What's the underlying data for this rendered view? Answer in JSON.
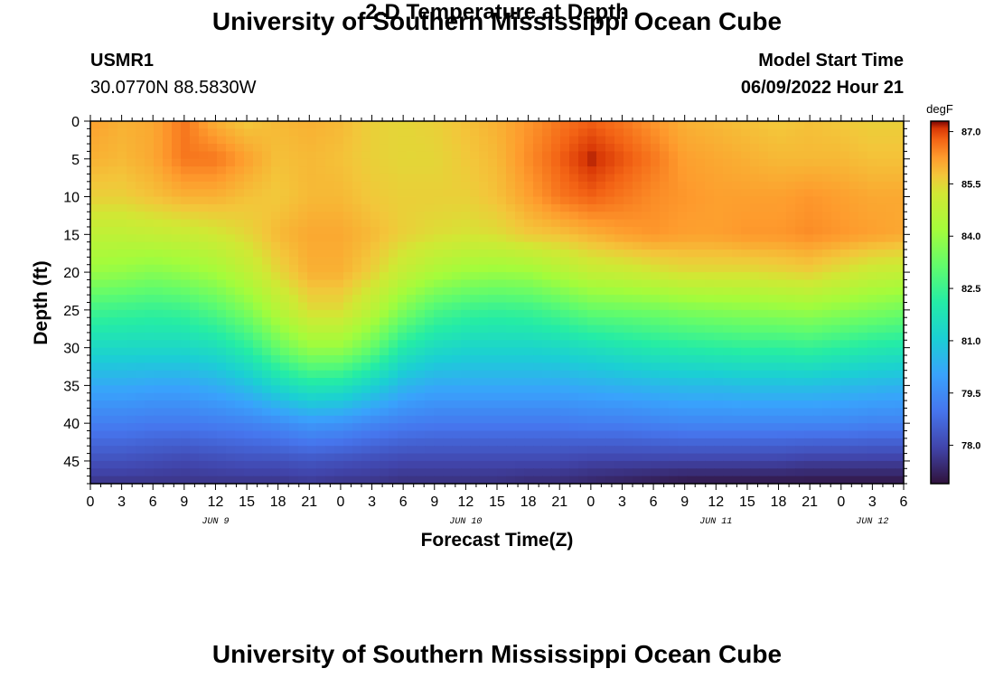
{
  "header": {
    "title": "University of Southern Mississippi Ocean Cube",
    "station": "USMR1",
    "coords": "30.0770N  88.5830W",
    "subtitle": "2-D Temperature at Depth",
    "model_start_label": "Model Start Time",
    "model_start_value": "06/09/2022 Hour 21"
  },
  "footer": {
    "title": "University of Southern Mississippi Ocean Cube"
  },
  "chart_data": {
    "type": "heatmap",
    "title": "2-D Temperature at Depth",
    "xlabel": "Forecast Time(Z)",
    "ylabel": "Depth (ft)",
    "x_hours": [
      0,
      3,
      6,
      9,
      12,
      15,
      18,
      21,
      24,
      27,
      30,
      33,
      36,
      39,
      42,
      45,
      48,
      51,
      54,
      57,
      60,
      63,
      66,
      69,
      72,
      75,
      78
    ],
    "x_tick_labels": [
      "0",
      "3",
      "6",
      "9",
      "12",
      "15",
      "18",
      "21",
      "0",
      "3",
      "6",
      "9",
      "12",
      "15",
      "18",
      "21",
      "0",
      "3",
      "6",
      "9",
      "12",
      "15",
      "18",
      "21",
      "0",
      "3",
      "6"
    ],
    "date_labels": [
      {
        "text": "JUN 9",
        "hour": 12
      },
      {
        "text": "JUN 10",
        "hour": 36
      },
      {
        "text": "JUN 11",
        "hour": 60
      },
      {
        "text": "JUN 12",
        "hour": 75
      }
    ],
    "ylim": [
      0,
      48
    ],
    "y_ticks": [
      0,
      5,
      10,
      15,
      20,
      25,
      30,
      35,
      40,
      45
    ],
    "colorbar": {
      "label": "degF",
      "min": 76.9,
      "max": 87.3,
      "ticks": [
        "87.0",
        "85.5",
        "84.0",
        "82.5",
        "81.0",
        "79.5",
        "78.0"
      ]
    },
    "depths_ft": [
      0,
      5,
      10,
      15,
      20,
      25,
      30,
      35,
      40,
      45,
      48
    ],
    "temperature_degF": [
      [
        86.2,
        86.0,
        86.1,
        86.6,
        86.0,
        85.7,
        85.9,
        86.0,
        85.9,
        85.6,
        85.5,
        85.6,
        85.8,
        86.0,
        86.3,
        86.6,
        86.8,
        86.6,
        86.3,
        86.0,
        85.9,
        85.8,
        85.7,
        85.8,
        85.7,
        85.6,
        85.6
      ],
      [
        86.0,
        85.9,
        86.1,
        86.6,
        86.6,
        86.2,
        85.8,
        85.9,
        85.8,
        85.6,
        85.5,
        85.5,
        85.7,
        85.9,
        86.4,
        86.8,
        87.2,
        86.9,
        86.6,
        86.2,
        86.1,
        86.0,
        85.9,
        85.9,
        85.9,
        85.8,
        85.8
      ],
      [
        85.6,
        85.6,
        85.8,
        86.0,
        86.0,
        85.8,
        85.7,
        85.9,
        85.9,
        85.7,
        85.6,
        85.6,
        85.6,
        85.8,
        86.2,
        86.6,
        86.8,
        86.6,
        86.4,
        86.3,
        86.2,
        86.2,
        86.2,
        86.3,
        86.2,
        86.1,
        86.1
      ],
      [
        84.8,
        84.8,
        84.9,
        85.0,
        85.2,
        85.5,
        85.9,
        86.1,
        86.1,
        85.9,
        85.6,
        85.4,
        85.3,
        85.4,
        85.7,
        85.8,
        86.0,
        86.2,
        86.3,
        86.2,
        86.2,
        86.3,
        86.3,
        86.4,
        86.3,
        86.2,
        86.1
      ],
      [
        84.0,
        83.9,
        83.7,
        83.9,
        84.2,
        84.8,
        85.5,
        86.0,
        86.0,
        85.6,
        84.9,
        84.4,
        84.1,
        84.0,
        84.1,
        84.5,
        84.9,
        85.0,
        85.2,
        85.4,
        85.4,
        85.4,
        85.5,
        85.6,
        85.3,
        85.0,
        84.9
      ],
      [
        82.6,
        82.5,
        82.4,
        82.5,
        82.9,
        83.6,
        84.6,
        85.4,
        85.4,
        84.7,
        83.6,
        82.8,
        82.5,
        82.4,
        82.5,
        82.8,
        83.2,
        83.3,
        83.4,
        83.6,
        83.7,
        83.8,
        83.9,
        84.0,
        83.8,
        83.6,
        83.4
      ],
      [
        81.4,
        81.4,
        81.4,
        81.4,
        81.6,
        82.2,
        83.2,
        84.0,
        84.0,
        83.2,
        82.0,
        81.5,
        81.3,
        81.3,
        81.3,
        81.4,
        81.6,
        81.8,
        82.0,
        82.1,
        82.2,
        82.3,
        82.3,
        82.4,
        82.2,
        82.0,
        81.9
      ],
      [
        80.2,
        80.2,
        80.1,
        80.1,
        80.3,
        80.7,
        81.4,
        81.9,
        81.8,
        81.2,
        80.5,
        80.2,
        80.2,
        80.2,
        80.2,
        80.2,
        80.3,
        80.4,
        80.5,
        80.6,
        80.6,
        80.7,
        80.7,
        80.7,
        80.6,
        80.5,
        80.4
      ],
      [
        79.2,
        79.2,
        79.1,
        79.1,
        79.2,
        79.3,
        79.5,
        79.8,
        79.7,
        79.4,
        79.2,
        79.1,
        79.1,
        79.1,
        79.1,
        79.1,
        79.2,
        79.2,
        79.3,
        79.4,
        79.4,
        79.4,
        79.4,
        79.4,
        79.4,
        79.3,
        79.3
      ],
      [
        78.2,
        78.2,
        78.1,
        78.0,
        78.1,
        78.2,
        78.2,
        78.3,
        78.2,
        78.1,
        78.0,
        78.0,
        78.0,
        78.0,
        78.0,
        78.0,
        77.9,
        77.9,
        77.9,
        77.9,
        77.9,
        77.9,
        77.9,
        77.8,
        77.8,
        77.8,
        77.8
      ],
      [
        77.6,
        77.6,
        77.6,
        77.6,
        77.6,
        77.6,
        77.6,
        77.7,
        77.6,
        77.6,
        77.5,
        77.5,
        77.5,
        77.5,
        77.4,
        77.4,
        77.3,
        77.2,
        77.1,
        77.0,
        77.0,
        77.0,
        77.0,
        77.0,
        77.0,
        77.0,
        77.0
      ]
    ]
  }
}
